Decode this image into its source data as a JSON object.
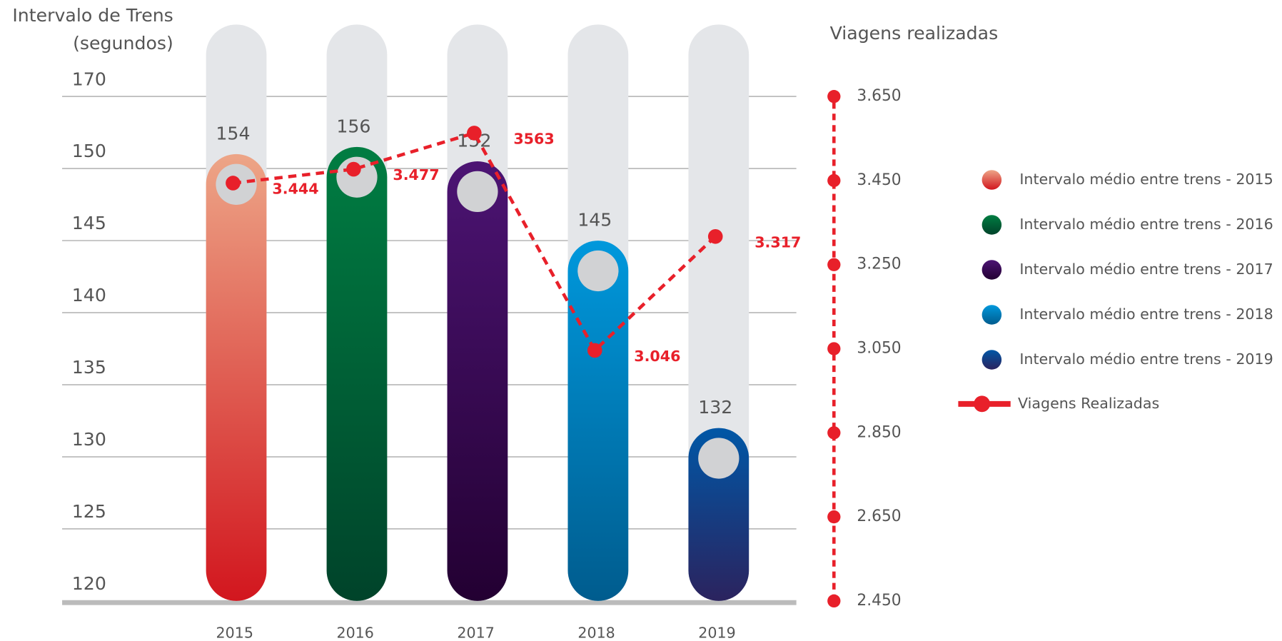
{
  "chart_data": {
    "type": "bar",
    "ylabel": [
      "Intervalo de Trens",
      "(segundos)"
    ],
    "y2label": "Viagens realizadas",
    "categories": [
      "2015",
      "2016",
      "2017",
      "2018",
      "2019"
    ],
    "values": [
      154,
      156,
      152,
      145,
      132
    ],
    "colors": [
      [
        "#eda587",
        "#d2161e"
      ],
      [
        "#007d42",
        "#00432a"
      ],
      [
        "#4c1473",
        "#230032"
      ],
      [
        "#0098dc",
        "#005c8e"
      ],
      [
        "#0057a6",
        "#2b235e"
      ]
    ],
    "bar_legend": [
      "Intervalo médio entre trens - 2015",
      "Intervalo médio entre trens - 2016",
      "Intervalo médio entre trens - 2017",
      "Intervalo médio entre trens - 2018",
      "Intervalo médio entre trens - 2019"
    ],
    "ylim": [
      120,
      170
    ],
    "yticks": [
      120,
      125,
      130,
      135,
      140,
      145,
      150,
      170
    ],
    "grid": true,
    "y2lim": [
      2450,
      3650
    ],
    "y2ticks": [
      {
        "value": 2450,
        "label": "2.450"
      },
      {
        "value": 2650,
        "label": "2.650"
      },
      {
        "value": 2850,
        "label": "2.850"
      },
      {
        "value": 3050,
        "label": "3.050"
      },
      {
        "value": 3250,
        "label": "3.250"
      },
      {
        "value": 3450,
        "label": "3.450"
      },
      {
        "value": 3650,
        "label": "3.650"
      }
    ],
    "series": [
      {
        "name": "Viagens Realizadas",
        "type": "line",
        "axis": "y2",
        "color": "#e8202a",
        "values": [
          3444,
          3477,
          3563,
          3046,
          3317
        ],
        "value_labels": [
          "3.444",
          "3.477",
          "3563",
          "3.046",
          "3.317"
        ]
      }
    ]
  }
}
